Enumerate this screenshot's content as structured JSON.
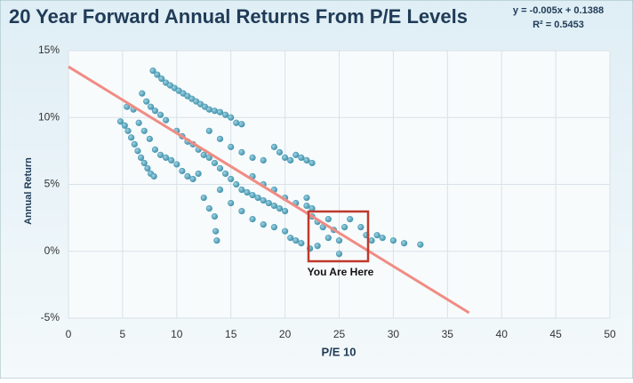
{
  "chart_data": {
    "type": "scatter",
    "title": "20 Year Forward Annual Returns From P/E Levels",
    "equation": "y = -0.005x + 0.1388",
    "r_squared": "R² = 0.5453",
    "x_label": "P/E 10",
    "y_label": "Annual Return",
    "annotation": "You Are Here",
    "grid": true,
    "xlim": [
      0,
      50
    ],
    "xticks": [
      0,
      5,
      10,
      15,
      20,
      25,
      30,
      35,
      40,
      45,
      50
    ],
    "ylim": [
      -5,
      15
    ],
    "yticks": [
      {
        "value": -5,
        "label": "-5%"
      },
      {
        "value": 0,
        "label": "0%"
      },
      {
        "value": 5,
        "label": "5%"
      },
      {
        "value": 10,
        "label": "10%"
      },
      {
        "value": 15,
        "label": "15%"
      }
    ],
    "series": [
      {
        "name": "Annual Return",
        "color": "#4a9bb5",
        "x": [
          7.8,
          8.2,
          8.6,
          9,
          9.4,
          9.8,
          10.2,
          10.6,
          11,
          11.4,
          11.8,
          12.2,
          12.6,
          13,
          13.5,
          14,
          14.5,
          15,
          15.5,
          16,
          6.8,
          7.2,
          7.6,
          8,
          8.5,
          9,
          4.8,
          5.2,
          5.5,
          5.8,
          6.1,
          6.4,
          6.7,
          7,
          7.3,
          7.6,
          7.9,
          5.4,
          6,
          6.5,
          7,
          7.5,
          8,
          8.5,
          9,
          9.5,
          10,
          10.5,
          11,
          11.5,
          12,
          10,
          10.5,
          11,
          11.5,
          12,
          12.5,
          13,
          13.5,
          14,
          14.5,
          15,
          15.5,
          16,
          16.5,
          17,
          17.5,
          18,
          18.5,
          19,
          19.5,
          20,
          12.5,
          13,
          13.5,
          13.6,
          13.7,
          14,
          15,
          16,
          17,
          18,
          19,
          20,
          20.5,
          21,
          21.5,
          13,
          14,
          15,
          16,
          17,
          18,
          19,
          19.5,
          20,
          20.5,
          21,
          21.5,
          22,
          22.5,
          17,
          18,
          19,
          20,
          21,
          22,
          22,
          22.5,
          22.5,
          23,
          23.5,
          24,
          24,
          24.5,
          25,
          25.5,
          25,
          26,
          27,
          27.5,
          28,
          28.5,
          29,
          30,
          31,
          32.5,
          23,
          22.3
        ],
        "values": [
          13.5,
          13.2,
          12.9,
          12.6,
          12.4,
          12.2,
          12,
          11.8,
          11.6,
          11.4,
          11.2,
          11,
          10.8,
          10.6,
          10.5,
          10.4,
          10.2,
          10,
          9.6,
          9.5,
          11.8,
          11.2,
          10.8,
          10.5,
          10.2,
          9.8,
          9.7,
          9.4,
          9,
          8.5,
          8,
          7.5,
          7,
          6.6,
          6.2,
          5.8,
          5.6,
          10.8,
          10.6,
          9.6,
          9,
          8.4,
          7.6,
          7.2,
          7,
          6.8,
          6.5,
          6,
          5.6,
          5.4,
          5.8,
          9,
          8.6,
          8.2,
          8,
          7.6,
          7.2,
          7,
          6.6,
          6.2,
          5.8,
          5.4,
          5,
          4.6,
          4.4,
          4.2,
          4,
          3.8,
          3.6,
          3.4,
          3.2,
          3,
          4,
          3.2,
          2.6,
          1.5,
          0.8,
          4.6,
          3.6,
          3,
          2.4,
          2,
          1.8,
          1.5,
          1,
          0.8,
          0.6,
          9,
          8.4,
          7.8,
          7.4,
          7,
          6.8,
          7.8,
          7.4,
          7,
          6.8,
          7.2,
          7,
          6.8,
          6.6,
          5.6,
          5,
          4.6,
          4,
          3.6,
          3.4,
          4,
          3.2,
          2.6,
          2.2,
          1.8,
          2.4,
          1,
          1.6,
          0.8,
          1.8,
          -0.2,
          2.4,
          1.8,
          1.2,
          0.8,
          1.2,
          1,
          0.8,
          0.6,
          0.5,
          0.4,
          0.2
        ]
      }
    ],
    "trendline": {
      "color": "#f08c84",
      "x": [
        0,
        37
      ],
      "values": [
        13.8,
        -4.6
      ]
    }
  }
}
